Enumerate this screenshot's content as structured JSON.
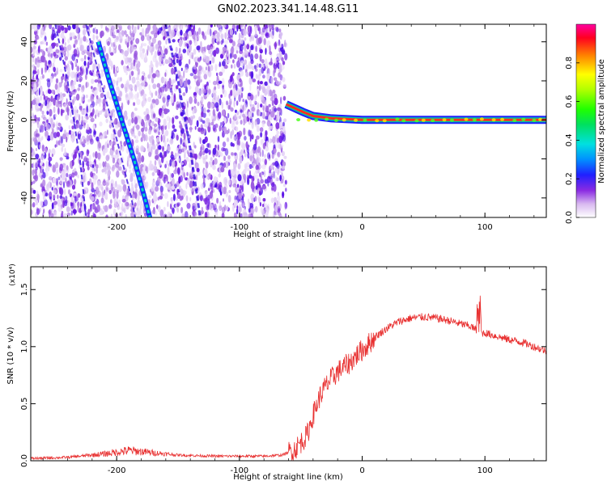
{
  "title": "GN02.2023.341.14.48.G11",
  "chart_data": [
    {
      "type": "heatmap",
      "xlabel": "Height of straight line (km)",
      "ylabel": "Frequency (Hz)",
      "xlim": [
        -270,
        150
      ],
      "ylim": [
        -50,
        49
      ],
      "x_ticks": [
        -200,
        -100,
        0,
        100
      ],
      "y_ticks": [
        -40,
        -20,
        0,
        20,
        40
      ],
      "colorbar": {
        "label": "Normalized spectral amplitude",
        "ticks": [
          0.0,
          0.2,
          0.4,
          0.6,
          0.8
        ],
        "range": [
          0,
          1
        ]
      },
      "features": {
        "noise_region_x": [
          -270,
          -62
        ],
        "strong_line": [
          {
            "x": -215,
            "f": 40
          },
          {
            "x": -206,
            "f": 20
          },
          {
            "x": -197,
            "f": 2
          },
          {
            "x": -186,
            "f": -20
          },
          {
            "x": -178,
            "f": -38
          },
          {
            "x": -173,
            "f": -50
          }
        ],
        "tracks": [
          [
            {
              "x": -225,
              "f": 49
            },
            {
              "x": -213,
              "f": 20
            },
            {
              "x": -200,
              "f": -10
            },
            {
              "x": -188,
              "f": -40
            },
            {
              "x": -185,
              "f": -50
            }
          ],
          [
            {
              "x": -160,
              "f": 49
            },
            {
              "x": -150,
              "f": 20
            },
            {
              "x": -140,
              "f": -15
            },
            {
              "x": -132,
              "f": -50
            }
          ],
          [
            {
              "x": -250,
              "f": 49
            },
            {
              "x": -240,
              "f": 20
            },
            {
              "x": -230,
              "f": -20
            },
            {
              "x": -225,
              "f": -50
            }
          ]
        ],
        "dc_line": [
          {
            "x": -62,
            "f": 8
          },
          {
            "x": -55,
            "f": 6
          },
          {
            "x": -48,
            "f": 4
          },
          {
            "x": -40,
            "f": 2
          },
          {
            "x": -25,
            "f": 0.8
          },
          {
            "x": 0,
            "f": 0
          },
          {
            "x": 150,
            "f": 0
          }
        ]
      }
    },
    {
      "type": "line",
      "xlabel": "Height of straight line (km)",
      "ylabel": "SNR (10 * v/v)",
      "y_multiplier": "(x10⁴)",
      "xlim": [
        -270,
        150
      ],
      "ylim": [
        0,
        1.7
      ],
      "x_ticks": [
        -200,
        -100,
        0,
        100
      ],
      "y_ticks": [
        0.0,
        0.5,
        1.0,
        1.5
      ],
      "series": [
        {
          "color": "#e83030",
          "x": [
            -270,
            -240,
            -210,
            -190,
            -170,
            -150,
            -120,
            -100,
            -80,
            -65,
            -55,
            -45,
            -40,
            -35,
            -30,
            -25,
            -20,
            -15,
            -10,
            -5,
            0,
            5,
            10,
            20,
            30,
            40,
            50,
            60,
            70,
            80,
            88,
            92,
            96,
            100,
            110,
            120,
            130,
            140,
            150
          ],
          "values": [
            0.02,
            0.03,
            0.06,
            0.09,
            0.07,
            0.05,
            0.04,
            0.04,
            0.04,
            0.05,
            0.1,
            0.22,
            0.4,
            0.55,
            0.65,
            0.72,
            0.78,
            0.82,
            0.86,
            0.92,
            0.97,
            1.02,
            1.08,
            1.16,
            1.22,
            1.25,
            1.26,
            1.25,
            1.23,
            1.2,
            1.18,
            1.15,
            1.12,
            1.12,
            1.09,
            1.06,
            1.04,
            1.0,
            0.96
          ]
        }
      ]
    }
  ]
}
